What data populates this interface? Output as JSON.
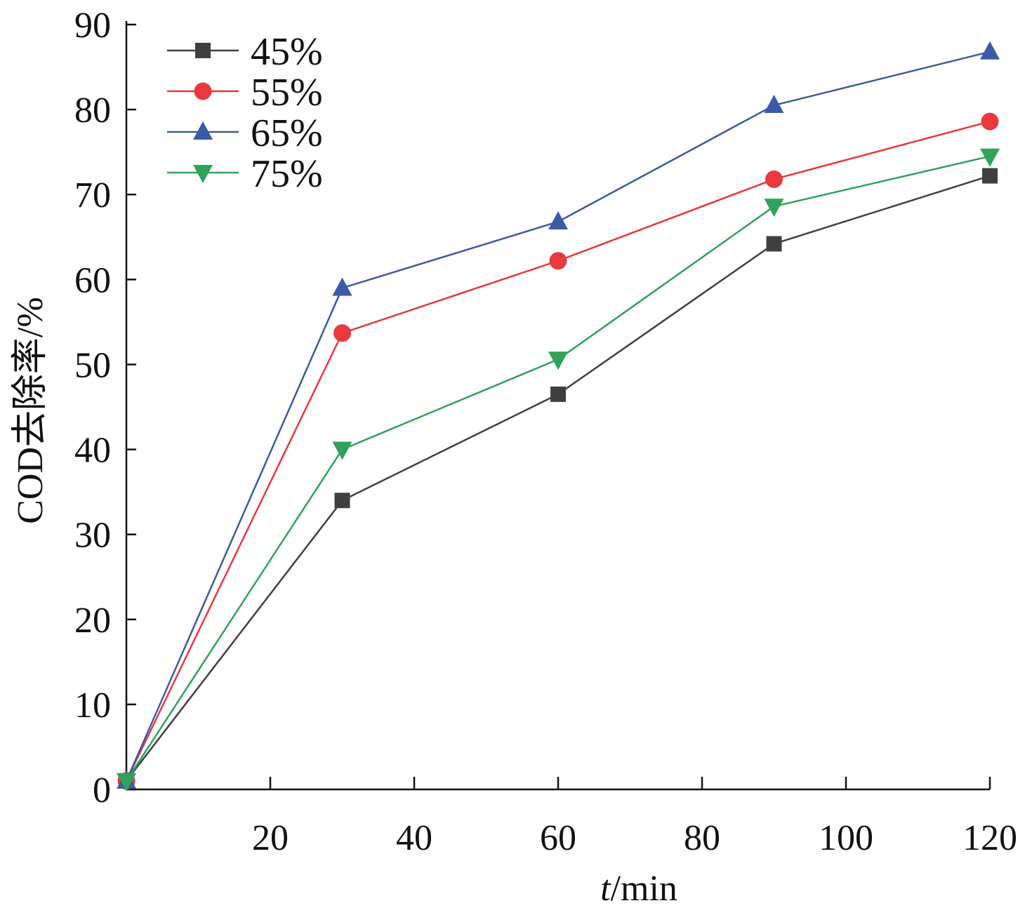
{
  "chart_data": {
    "type": "line",
    "x": [
      0,
      30,
      60,
      90,
      120
    ],
    "x_ticks": [
      20,
      40,
      60,
      80,
      100,
      120
    ],
    "x_tick_labels": [
      "20",
      "40",
      "60",
      "80",
      "100",
      "120"
    ],
    "y_ticks": [
      0,
      10,
      20,
      30,
      40,
      50,
      60,
      70,
      80,
      90
    ],
    "y_tick_labels": [
      "0",
      "10",
      "20",
      "30",
      "40",
      "50",
      "60",
      "70",
      "80",
      "90"
    ],
    "xlim": [
      0,
      120
    ],
    "ylim": [
      0,
      90
    ],
    "xlabel_italic": "t",
    "xlabel_rest": "/min",
    "ylabel": "COD去除率/%",
    "grid": false,
    "legend_position": "top-left",
    "series": [
      {
        "name": "45%",
        "marker": "square",
        "color": "#404040",
        "values": [
          1.0,
          34.0,
          46.5,
          64.2,
          72.2
        ]
      },
      {
        "name": "55%",
        "marker": "circle",
        "color": "#e8393f",
        "values": [
          1.0,
          53.7,
          62.2,
          71.8,
          78.6
        ]
      },
      {
        "name": "65%",
        "marker": "triangle-up",
        "color": "#3a5ba5",
        "values": [
          1.0,
          59.0,
          66.8,
          80.5,
          86.8
        ]
      },
      {
        "name": "75%",
        "marker": "triangle-down",
        "color": "#2fa35a",
        "values": [
          1.0,
          40.0,
          50.6,
          68.6,
          74.5
        ]
      }
    ]
  }
}
